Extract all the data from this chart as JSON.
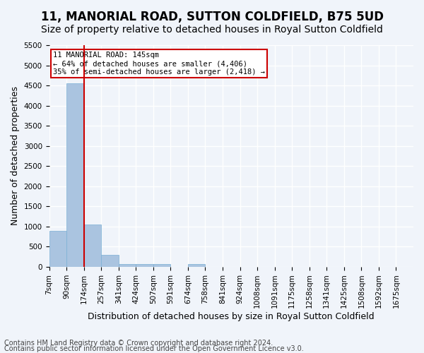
{
  "title": "11, MANORIAL ROAD, SUTTON COLDFIELD, B75 5UD",
  "subtitle": "Size of property relative to detached houses in Royal Sutton Coldfield",
  "xlabel": "Distribution of detached houses by size in Royal Sutton Coldfield",
  "ylabel": "Number of detached properties",
  "footnote1": "Contains HM Land Registry data © Crown copyright and database right 2024.",
  "footnote2": "Contains public sector information licensed under the Open Government Licence v3.0.",
  "bin_labels": [
    "7sqm",
    "90sqm",
    "174sqm",
    "257sqm",
    "341sqm",
    "424sqm",
    "507sqm",
    "591sqm",
    "674sqm",
    "758sqm",
    "841sqm",
    "924sqm",
    "1008sqm",
    "1091sqm",
    "1175sqm",
    "1258sqm",
    "1341sqm",
    "1425sqm",
    "1508sqm",
    "1592sqm",
    "1675sqm"
  ],
  "bar_values": [
    900,
    4550,
    1050,
    290,
    75,
    65,
    65,
    0,
    65,
    0,
    0,
    0,
    0,
    0,
    0,
    0,
    0,
    0,
    0,
    0,
    0
  ],
  "bar_color": "#aac4e0",
  "bar_edge_color": "#7aafd4",
  "red_line_x": 2,
  "ylim": [
    0,
    5500
  ],
  "yticks": [
    0,
    500,
    1000,
    1500,
    2000,
    2500,
    3000,
    3500,
    4000,
    4500,
    5000,
    5500
  ],
  "annotation_title": "11 MANORIAL ROAD: 145sqm",
  "annotation_line1": "← 64% of detached houses are smaller (4,406)",
  "annotation_line2": "35% of semi-detached houses are larger (2,418) →",
  "annotation_box_color": "#ffffff",
  "annotation_box_edge": "#cc0000",
  "bg_color": "#f0f4fa",
  "grid_color": "#ffffff",
  "title_fontsize": 12,
  "subtitle_fontsize": 10,
  "axis_label_fontsize": 9,
  "tick_fontsize": 7.5,
  "footnote_fontsize": 7
}
